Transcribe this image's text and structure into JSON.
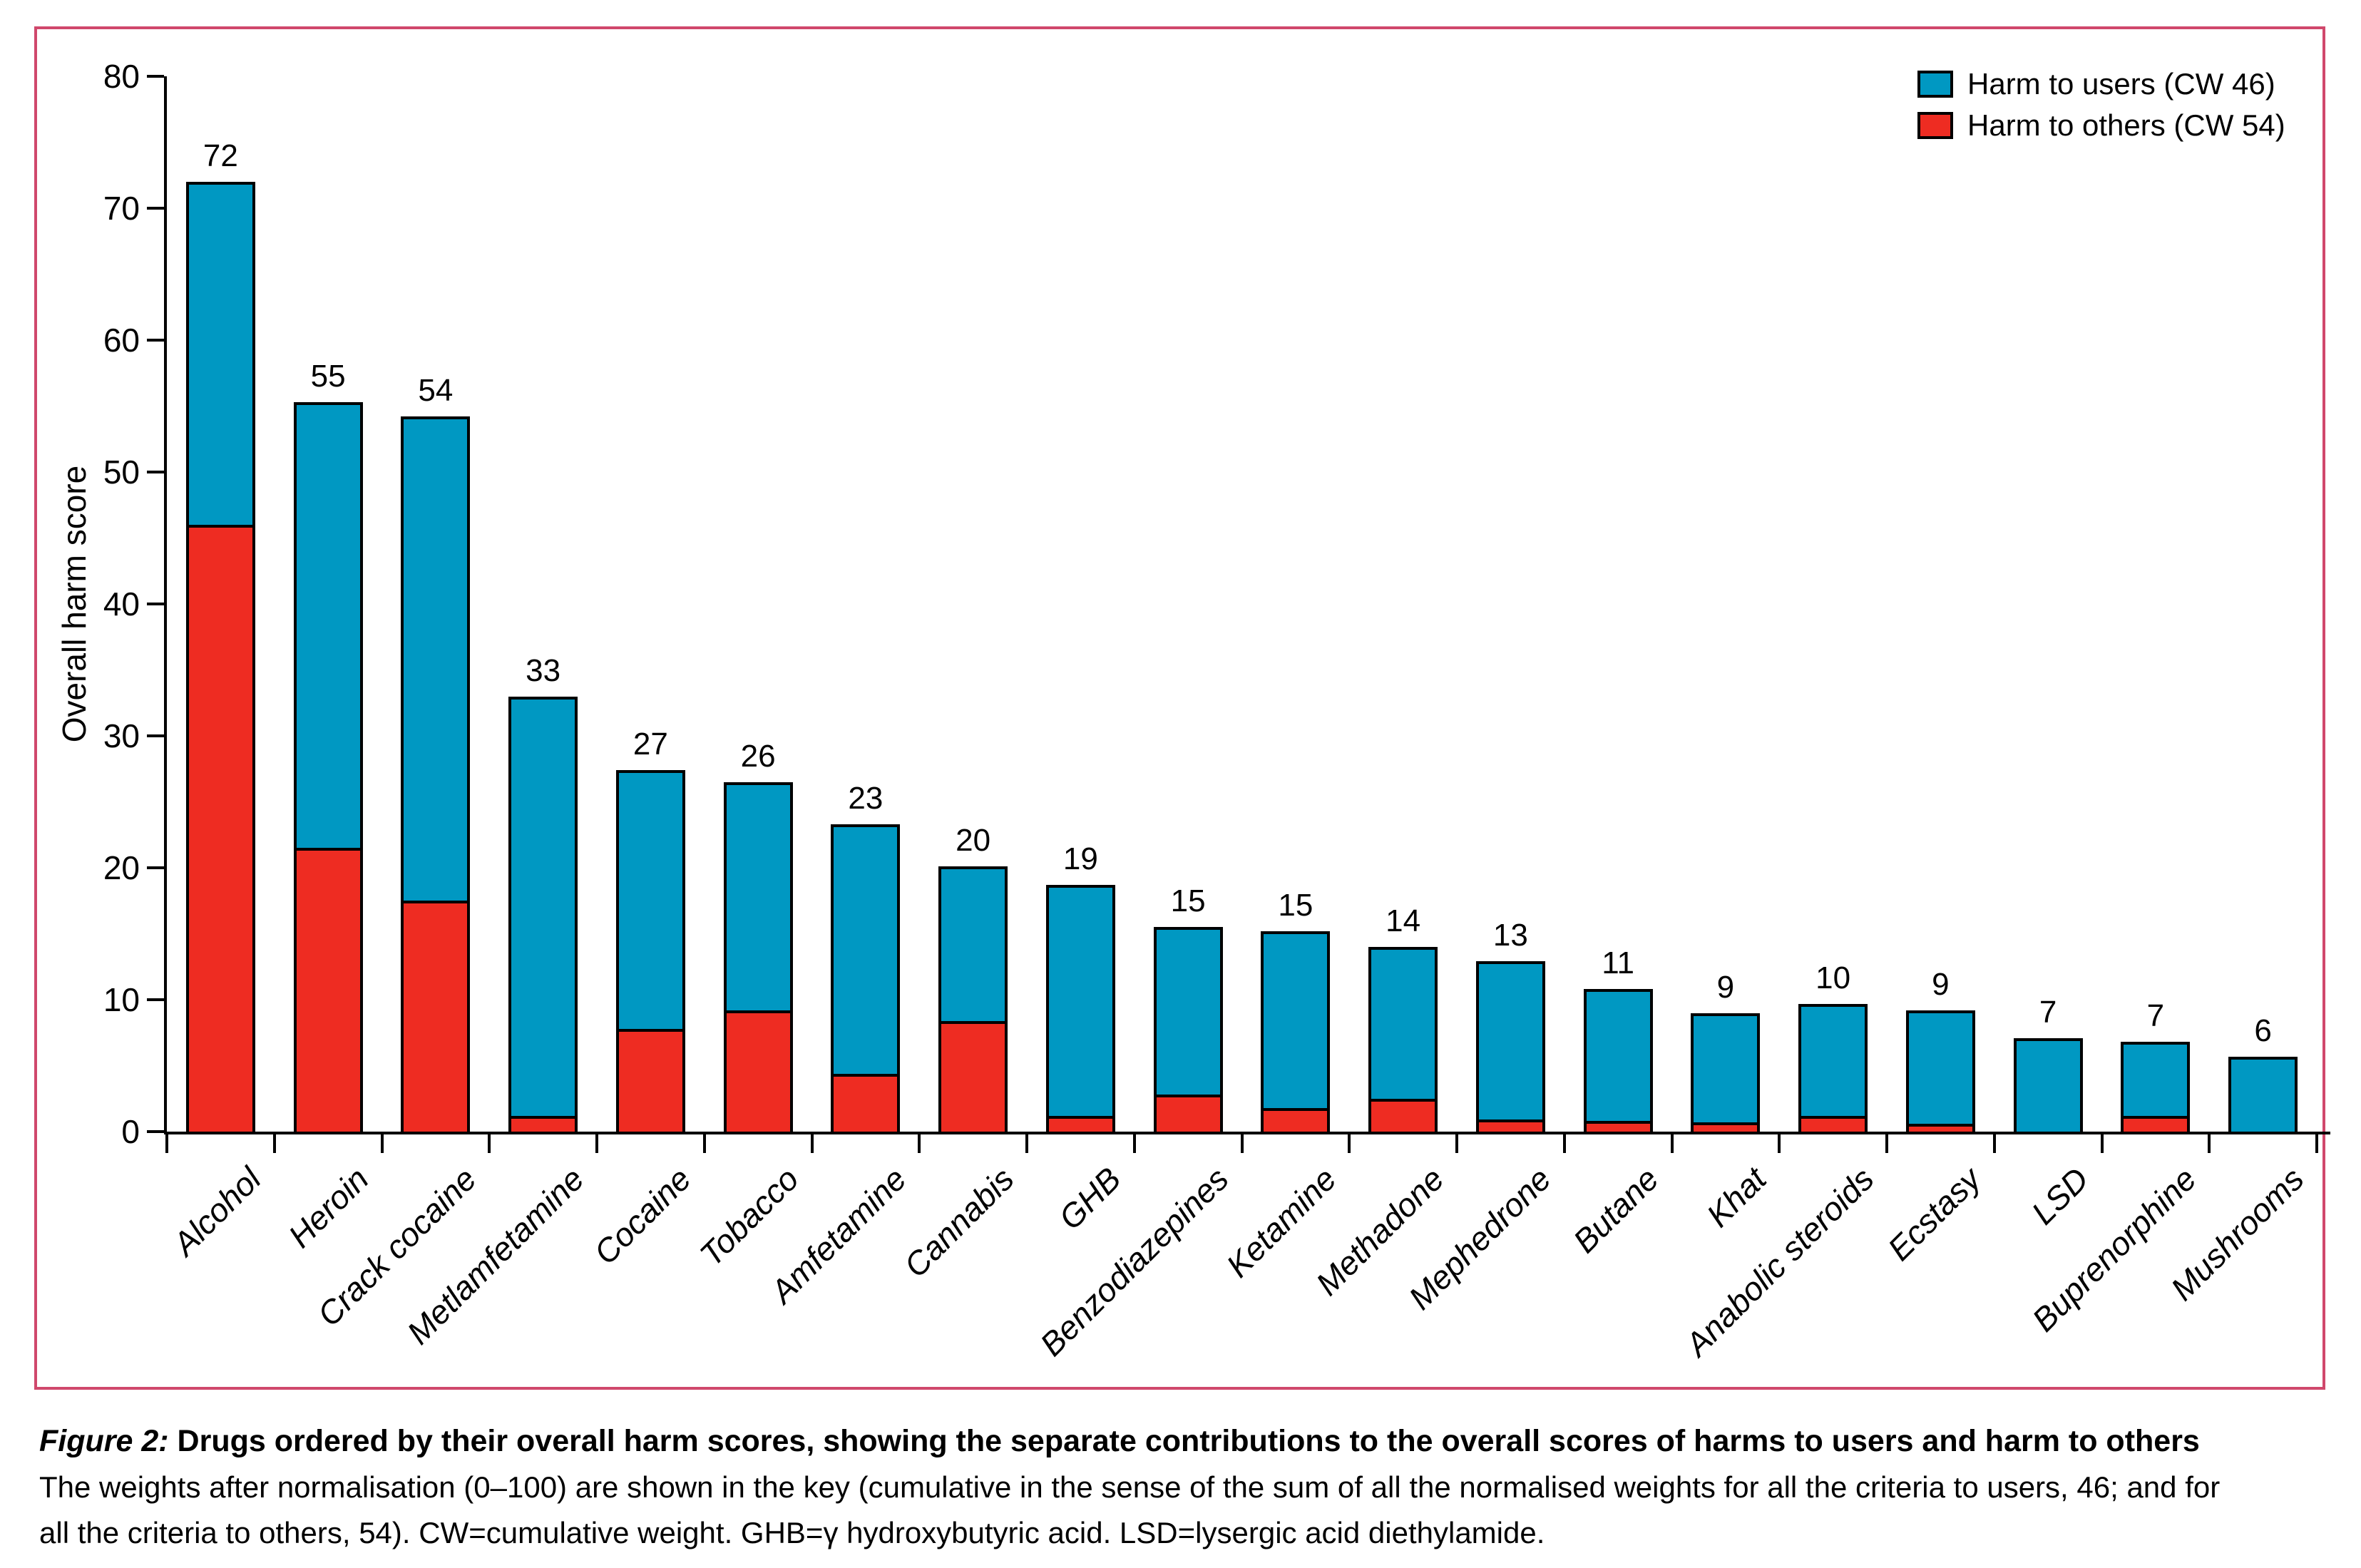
{
  "page": {
    "background": "#ffffff",
    "panel_border_color": "#d0486c"
  },
  "chart_data": {
    "type": "bar",
    "stacked": true,
    "title": "",
    "xlabel": "",
    "ylabel": "Overall harm score",
    "ylim": [
      0,
      80
    ],
    "yticks": [
      0,
      10,
      20,
      30,
      40,
      50,
      60,
      70,
      80
    ],
    "grid": false,
    "legend_position": "top-right",
    "categories": [
      "Alcohol",
      "Heroin",
      "Crack cocaine",
      "Metlamfetamine",
      "Cocaine",
      "Tobacco",
      "Amfetamine",
      "Cannabis",
      "GHB",
      "Benzodiazepines",
      "Ketamine",
      "Methadone",
      "Mephedrone",
      "Butane",
      "Khat",
      "Anabolic steroids",
      "Ecstasy",
      "LSD",
      "Buprenorphine",
      "Mushrooms"
    ],
    "bar_total_labels": [
      "72",
      "55",
      "54",
      "33",
      "27",
      "26",
      "23",
      "20",
      "19",
      "15",
      "15",
      "14",
      "13",
      "11",
      "9",
      "10",
      "9",
      "7",
      "7",
      "6"
    ],
    "series": [
      {
        "name": "Harm to users (CW 46)",
        "color": "#0098c2",
        "values": [
          26.0,
          33.8,
          36.7,
          31.8,
          19.6,
          17.3,
          18.9,
          11.7,
          17.5,
          12.7,
          13.4,
          11.5,
          12.0,
          10.0,
          8.3,
          8.5,
          8.6,
          7.1,
          5.6,
          5.7
        ]
      },
      {
        "name": "Harm to others (CW 54)",
        "color": "#ee2c22",
        "values": [
          46.0,
          21.5,
          17.5,
          1.2,
          7.8,
          9.2,
          4.4,
          8.4,
          1.2,
          2.8,
          1.8,
          2.5,
          0.9,
          0.8,
          0.7,
          1.2,
          0.6,
          0.0,
          1.2,
          0.0
        ]
      }
    ]
  },
  "caption": {
    "figure_label": "Figure 2:",
    "title": "Drugs ordered by their overall harm scores, showing the separate contributions to the overall scores of harms to users and harm to others",
    "body_line1": "The weights after normalisation (0–100) are shown in the key (cumulative in the sense of the sum of all the normalised weights for all the criteria to users, 46; and for",
    "body_line2": "all the criteria to others, 54). CW=cumulative weight. GHB=γ hydroxybutyric acid. LSD=lysergic acid diethylamide."
  }
}
